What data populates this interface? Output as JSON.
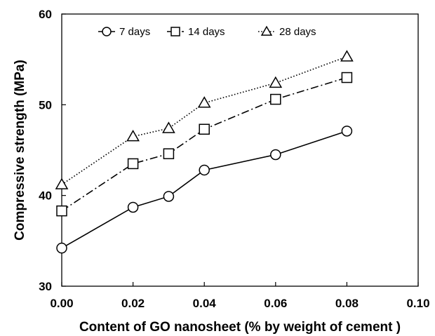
{
  "chart_data": {
    "type": "line",
    "x": [
      0.0,
      0.02,
      0.03,
      0.04,
      0.06,
      0.08
    ],
    "series": [
      {
        "name": "7 days",
        "values": [
          34.2,
          38.7,
          39.9,
          42.8,
          44.5,
          47.1
        ],
        "marker": "circle",
        "dash": "solid"
      },
      {
        "name": "14 days",
        "values": [
          38.3,
          43.5,
          44.6,
          47.3,
          50.6,
          53.0
        ],
        "marker": "square",
        "dash": "dashdot"
      },
      {
        "name": "28 days",
        "values": [
          41.2,
          46.5,
          47.4,
          50.2,
          52.4,
          55.3
        ],
        "marker": "triangle",
        "dash": "dotted"
      }
    ],
    "xlabel": "Content of GO nanosheet (% by weight of cement )",
    "ylabel": "Compressive strength (MPa)",
    "xlim": [
      0,
      0.1
    ],
    "ylim": [
      30,
      60
    ],
    "x_ticks": [
      "0.00",
      "0.02",
      "0.04",
      "0.06",
      "0.08",
      "0.10"
    ],
    "y_ticks": [
      "30",
      "40",
      "50",
      "60"
    ],
    "grid": false,
    "legend_position": "top-center"
  }
}
